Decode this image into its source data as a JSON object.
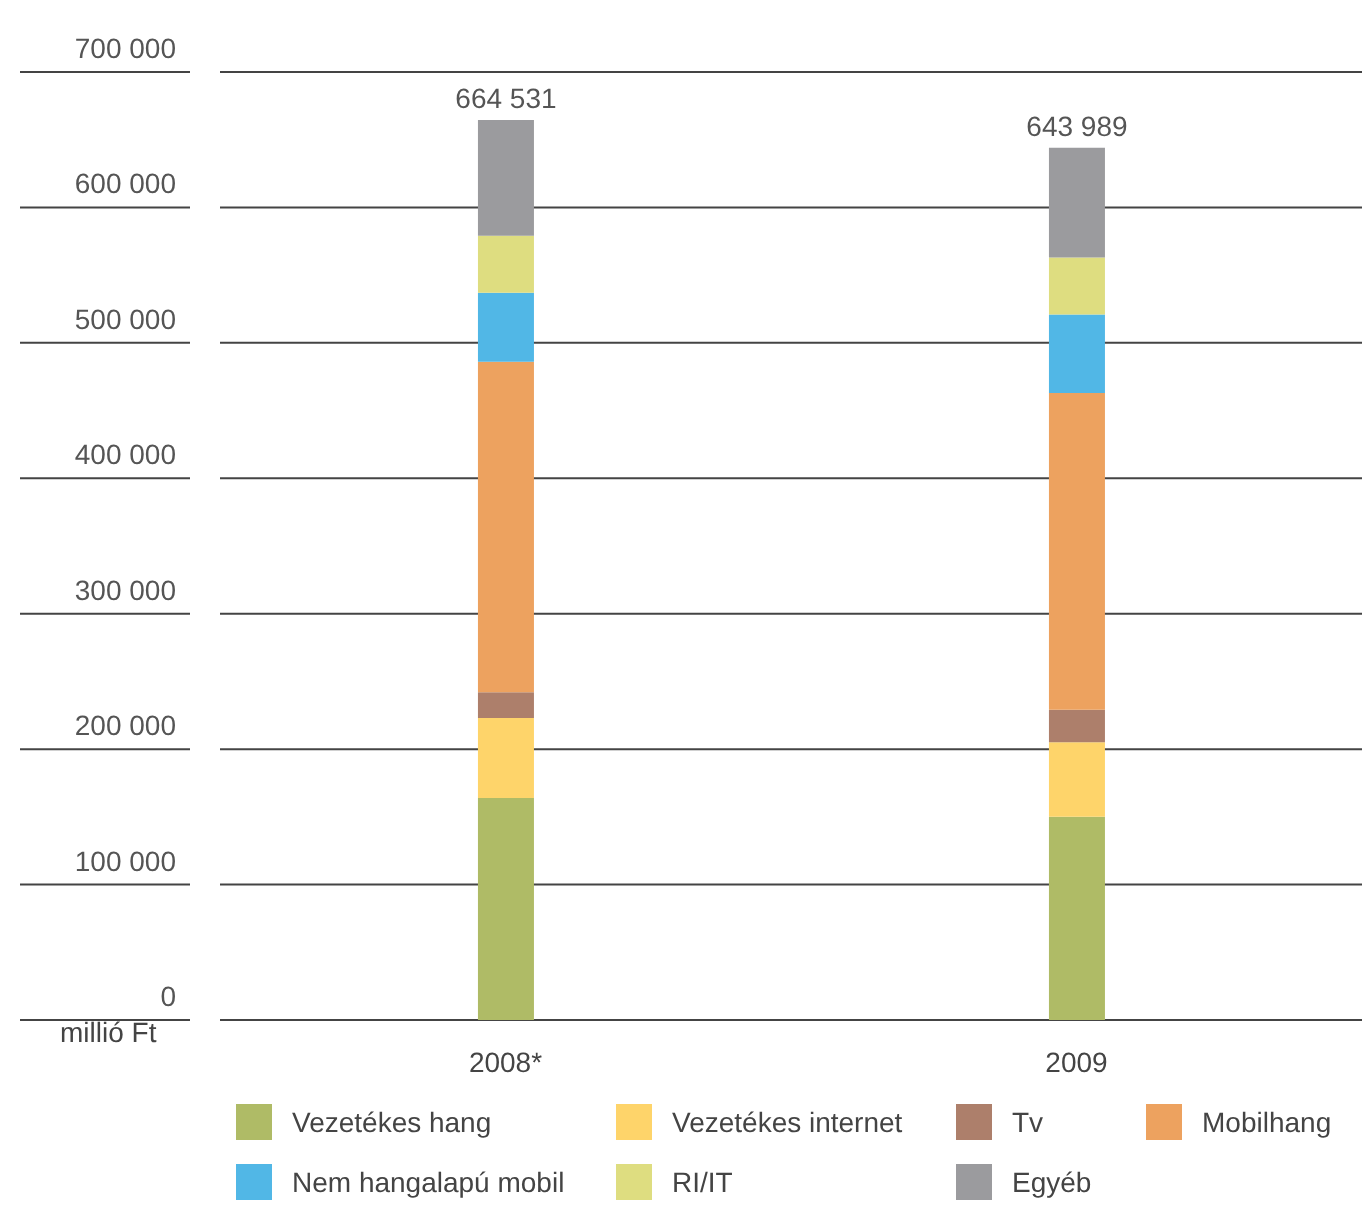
{
  "chart_data": {
    "type": "bar",
    "stacked": true,
    "categories": [
      "2008*",
      "2009"
    ],
    "ylabel": "millió Ft",
    "series": [
      {
        "name": "Vezetékes hang",
        "color": "#afbb66",
        "values": [
          164000,
          150000
        ]
      },
      {
        "name": "Vezetékes internet",
        "color": "#fed46a",
        "values": [
          59000,
          55000
        ]
      },
      {
        "name": "Tv",
        "color": "#ad7f6b",
        "values": [
          19000,
          24000
        ]
      },
      {
        "name": "Mobilhang",
        "color": "#eda25f",
        "values": [
          244000,
          234000
        ]
      },
      {
        "name": "Nem hangalapú mobil",
        "color": "#51b7e6",
        "values": [
          51000,
          58000
        ]
      },
      {
        "name": "RI/IT",
        "color": "#dedd80",
        "values": [
          42000,
          42000
        ]
      },
      {
        "name": "Egyéb",
        "color": "#9b9b9e",
        "values": [
          85531,
          80989
        ]
      }
    ],
    "totals": [
      "664 531",
      "643 989"
    ],
    "ylim": [
      0,
      700000
    ],
    "yticks": [
      {
        "value": 0,
        "label": "0"
      },
      {
        "value": 100000,
        "label": "100 000"
      },
      {
        "value": 200000,
        "label": "200 000"
      },
      {
        "value": 300000,
        "label": "300 000"
      },
      {
        "value": 400000,
        "label": "400 000"
      },
      {
        "value": 500000,
        "label": "500 000"
      },
      {
        "value": 600000,
        "label": "600 000"
      },
      {
        "value": 700000,
        "label": "700 000"
      }
    ],
    "grid": "y",
    "legend": "bottom"
  }
}
